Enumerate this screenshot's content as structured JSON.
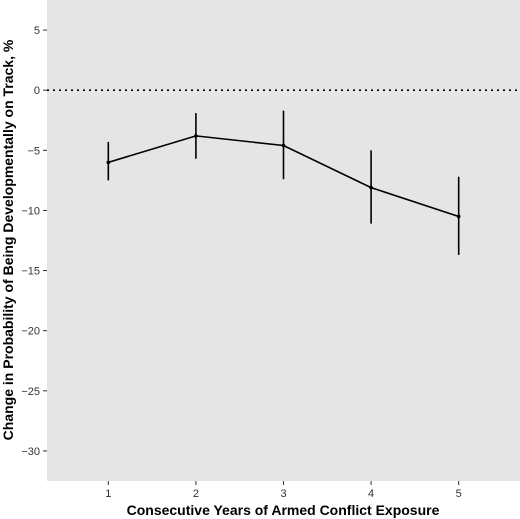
{
  "chart_data": {
    "type": "line",
    "title": "",
    "xlabel": "Consecutive Years of Armed Conflict Exposure",
    "ylabel": "Change in Probability of Being Developmentally on Track, %",
    "x": [
      1,
      2,
      3,
      4,
      5
    ],
    "series": [
      {
        "values": [
          -6.0,
          -3.8,
          -4.6,
          -8.1,
          -10.5
        ],
        "lower": [
          -7.5,
          -5.7,
          -7.4,
          -11.1,
          -13.7
        ],
        "upper": [
          -4.3,
          -1.9,
          -1.7,
          -5.0,
          -7.2
        ]
      }
    ],
    "xlim": [
      0.3,
      5.7
    ],
    "ylim": [
      -32.5,
      7.5
    ],
    "x_ticks": [
      1,
      2,
      3,
      4,
      5
    ],
    "y_ticks": [
      5,
      0,
      -5,
      -10,
      -15,
      -20,
      -25,
      -30
    ],
    "reference_line": 0,
    "grid": false,
    "legend": "none",
    "colors": {
      "panel": "#e5e5e5",
      "line": "#000000",
      "reference": "#000000"
    }
  }
}
